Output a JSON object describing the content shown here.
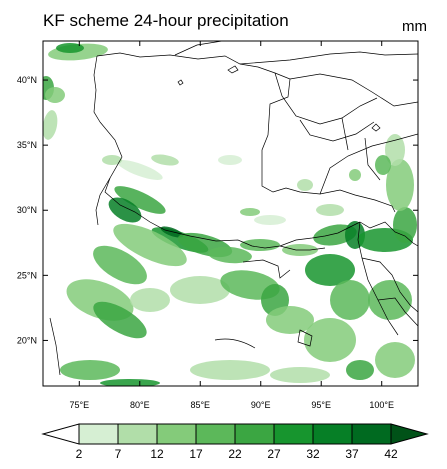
{
  "map": {
    "title": "KF scheme 24-hour precipitation",
    "units": "mm",
    "lon_labels": [
      "75°E",
      "80°E",
      "85°E",
      "90°E",
      "95°E",
      "100°E"
    ],
    "lat_labels": [
      "40°N",
      "35°N",
      "30°N",
      "25°N",
      "20°N"
    ],
    "lon_range": [
      72,
      103
    ],
    "lat_range": [
      16.5,
      43
    ]
  },
  "colorbar": {
    "levels": [
      "2",
      "7",
      "12",
      "17",
      "22",
      "27",
      "32",
      "37",
      "42"
    ],
    "colors": [
      "#ffffff",
      "#d6efd3",
      "#b1dea9",
      "#84cb7a",
      "#5cb85a",
      "#3ba642",
      "#17952e",
      "#067f26",
      "#006a20",
      "#005218"
    ]
  }
}
